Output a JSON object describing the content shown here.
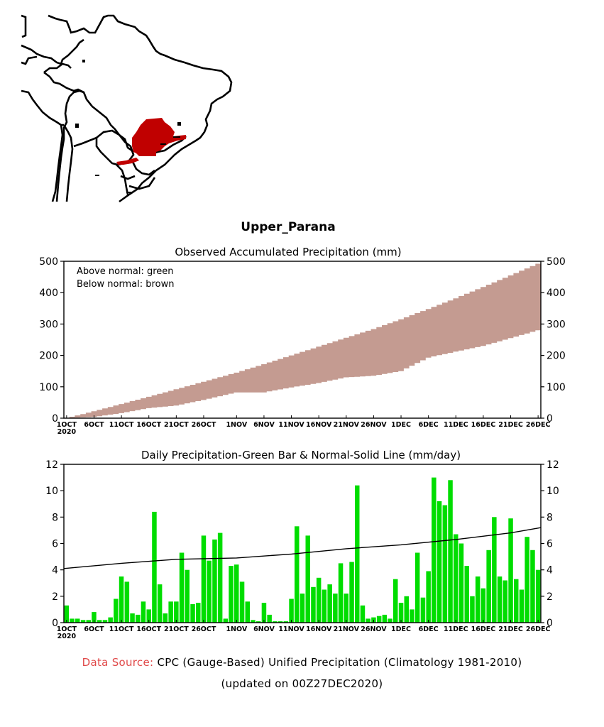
{
  "region_title": "Upper_Parana",
  "map": {
    "highlight_color": "#c00000",
    "outline_color": "#000000",
    "region_label": "Upper_Parana"
  },
  "chart_data": [
    {
      "type": "area",
      "title": "Observed Accumulated Precipitation (mm)",
      "xlabel": "",
      "ylabel": "",
      "ylim": [
        0,
        500
      ],
      "yticks": [
        0,
        100,
        200,
        300,
        400,
        500
      ],
      "xticks": [
        "1OCT",
        "6OCT",
        "11OCT",
        "16OCT",
        "21OCT",
        "26OCT",
        "1NOV",
        "6NOV",
        "11NOV",
        "16NOV",
        "21NOV",
        "26NOV",
        "1DEC",
        "6DEC",
        "11DEC",
        "16DEC",
        "21DEC",
        "26DEC"
      ],
      "xtick_year": "2020",
      "annotations": [
        "Above normal: green",
        "Below normal: brown"
      ],
      "colors": {
        "below": "#c49b91",
        "above": "#00dd00"
      },
      "grid": false,
      "series": [
        {
          "name": "Normal accumulated",
          "day_index": [
            0,
            5,
            10,
            15,
            20,
            25,
            31,
            36,
            41,
            46,
            51,
            56,
            61,
            66,
            71,
            76,
            81,
            86
          ],
          "values": [
            0,
            22,
            45,
            68,
            92,
            116,
            145,
            172,
            200,
            228,
            256,
            284,
            315,
            348,
            382,
            418,
            455,
            492
          ]
        },
        {
          "name": "Observed accumulated",
          "day_index": [
            0,
            5,
            10,
            15,
            20,
            25,
            31,
            36,
            41,
            46,
            51,
            56,
            61,
            66,
            71,
            76,
            81,
            86
          ],
          "values": [
            0,
            4,
            16,
            32,
            40,
            58,
            82,
            82,
            98,
            112,
            130,
            135,
            150,
            193,
            212,
            230,
            255,
            280
          ]
        }
      ]
    },
    {
      "type": "bar",
      "title": "Daily Precipitation-Green Bar & Normal-Solid Line (mm/day)",
      "xlabel": "",
      "ylabel": "",
      "ylim": [
        0,
        12
      ],
      "yticks": [
        0,
        2,
        4,
        6,
        8,
        10,
        12
      ],
      "xticks": [
        "1OCT",
        "6OCT",
        "11OCT",
        "16OCT",
        "21OCT",
        "26OCT",
        "1NOV",
        "6NOV",
        "11NOV",
        "16NOV",
        "21NOV",
        "26NOV",
        "1DEC",
        "6DEC",
        "11DEC",
        "16DEC",
        "21DEC",
        "26DEC"
      ],
      "xtick_year": "2020",
      "bar_color": "#00dd00",
      "line_color": "#000000",
      "grid": false,
      "series": [
        {
          "name": "Daily precipitation (mm/day)",
          "values": [
            1.3,
            0.3,
            0.3,
            0.2,
            0.2,
            0.8,
            0.2,
            0.2,
            0.4,
            1.8,
            3.5,
            3.1,
            0.7,
            0.6,
            1.6,
            1.0,
            8.4,
            2.9,
            0.7,
            1.6,
            1.6,
            5.3,
            4.0,
            1.4,
            1.5,
            6.6,
            4.7,
            6.3,
            6.8,
            0.3,
            4.3,
            4.4,
            3.1,
            1.6,
            0.2,
            0.1,
            1.5,
            0.6,
            0.1,
            0.1,
            0.1,
            1.8,
            7.3,
            2.2,
            6.6,
            2.7,
            3.4,
            2.5,
            2.9,
            2.2,
            4.5,
            2.2,
            4.6,
            10.4,
            1.3,
            0.3,
            0.4,
            0.5,
            0.6,
            0.3,
            3.3,
            1.5,
            2.0,
            1.0,
            5.3,
            1.9,
            3.9,
            11.0,
            9.2,
            8.9,
            10.8,
            6.7,
            6.0,
            4.3,
            2.0,
            3.5,
            2.6,
            5.5,
            8.0,
            3.5,
            3.2,
            7.9,
            3.3,
            2.5,
            6.5,
            5.5,
            4.0
          ]
        },
        {
          "name": "Normal (mm/day)",
          "day_index": [
            0,
            10,
            20,
            31,
            41,
            51,
            61,
            71,
            81,
            86
          ],
          "values": [
            4.1,
            4.5,
            4.8,
            4.9,
            5.2,
            5.6,
            5.9,
            6.3,
            6.8,
            7.2
          ]
        }
      ]
    }
  ],
  "footer": {
    "source_label": "Data Source:",
    "source_text": "CPC (Gauge-Based) Unified Precipitation (Climatology 1981-2010)",
    "updated_text": "(updated on 00Z27DEC2020)",
    "source_label_color": "#e04848"
  }
}
